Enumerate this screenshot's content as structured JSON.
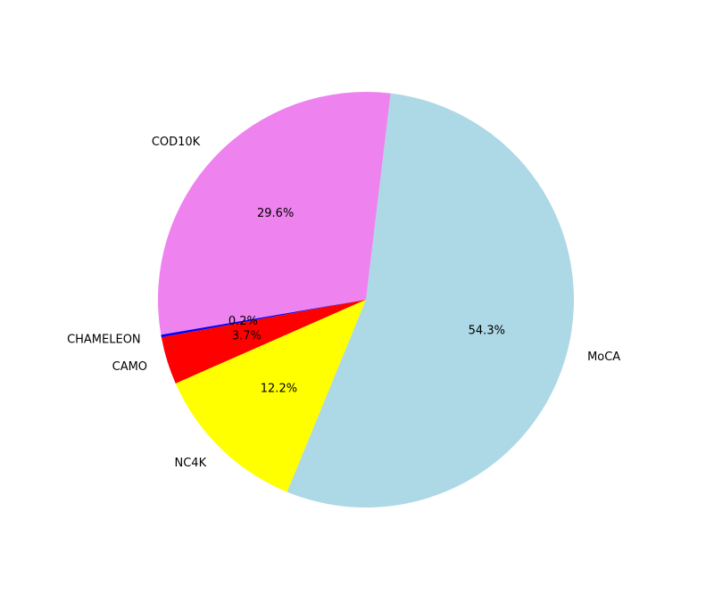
{
  "chart_data": {
    "type": "pie",
    "title": "",
    "slices": [
      {
        "label": "MoCA",
        "value": 54.3,
        "pct_label": "54.3%",
        "color": "#ADD8E6"
      },
      {
        "label": "COD10K",
        "value": 29.6,
        "pct_label": "29.6%",
        "color": "#EE82EE"
      },
      {
        "label": "CHAMELEON",
        "value": 0.2,
        "pct_label": "0.2%",
        "color": "#0000FF"
      },
      {
        "label": "CAMO",
        "value": 3.7,
        "pct_label": "3.7%",
        "color": "#FF0000"
      },
      {
        "label": "NC4K",
        "value": 12.2,
        "pct_label": "12.2%",
        "color": "#FFFF00"
      }
    ],
    "legend": "none"
  }
}
